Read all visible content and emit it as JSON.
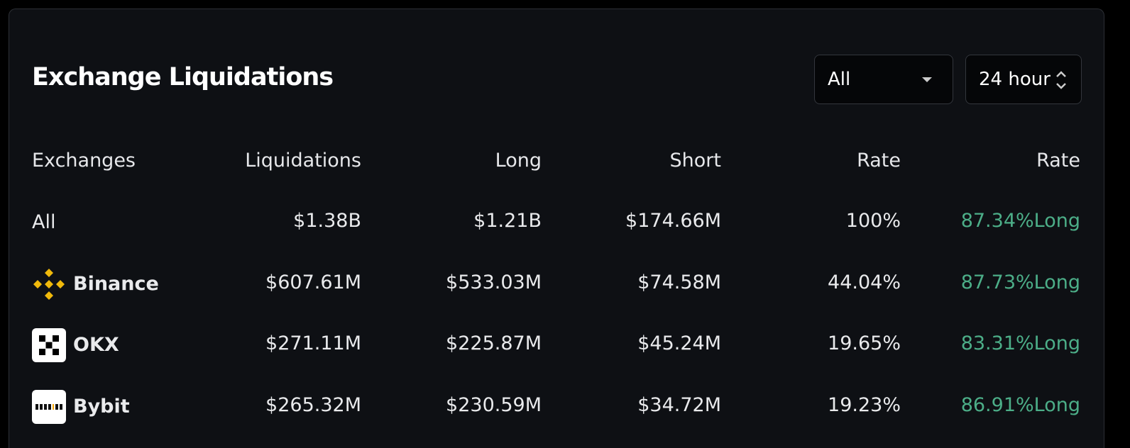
{
  "header": {
    "title": "Exchange Liquidations",
    "filters": [
      "All",
      "24 hour"
    ]
  },
  "table": {
    "columns": [
      "Exchanges",
      "Liquidations",
      "Long",
      "Short",
      "Rate",
      "Rate"
    ],
    "rows": [
      [
        "All",
        "$1.38B",
        "$1.21B",
        "$174.66M",
        "100%",
        "87.34%Long"
      ],
      [
        "Binance",
        "$607.61M",
        "$533.03M",
        "$74.58M",
        "44.04%",
        "87.73%Long"
      ],
      [
        "OKX",
        "$271.11M",
        "$225.87M",
        "$45.24M",
        "19.65%",
        "83.31%Long"
      ],
      [
        "Bybit",
        "$265.32M",
        "$230.59M",
        "$34.72M",
        "19.23%",
        "86.91%Long"
      ]
    ]
  }
}
